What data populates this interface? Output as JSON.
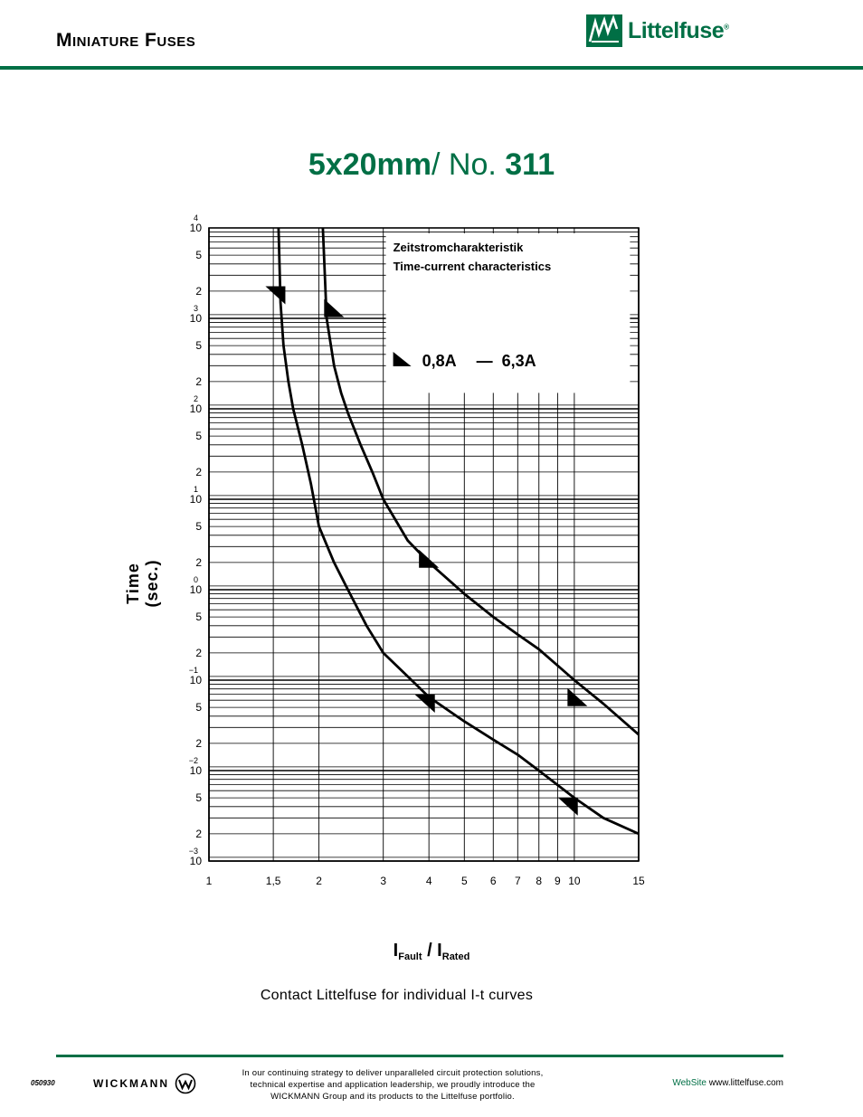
{
  "header": {
    "section_title": "Miniature Fuses",
    "brand_name": "Littelfuse",
    "brand_reg": "®"
  },
  "title": {
    "part1": "5x20mm",
    "part2": "/ No. ",
    "part3": "311"
  },
  "chart_data": {
    "type": "line",
    "title": "Zeitstromcharakteristik",
    "subtitle": "Time-current characteristics",
    "range_label_from": "0,8A",
    "range_label_dash": "—",
    "range_label_to": "6,3A",
    "ylabel": "Time (sec.)",
    "xlabel_main": "I",
    "xlabel_sub1": "Fault",
    "xlabel_sep": " / I",
    "xlabel_sub2": "Rated",
    "x_scale": "log",
    "y_scale": "log",
    "xlim": [
      1,
      15
    ],
    "ylim": [
      0.001,
      10000
    ],
    "x_ticks": [
      {
        "v": 1,
        "label": "1"
      },
      {
        "v": 1.5,
        "label": "1,5"
      },
      {
        "v": 2,
        "label": "2"
      },
      {
        "v": 3,
        "label": "3"
      },
      {
        "v": 4,
        "label": "4"
      },
      {
        "v": 5,
        "label": "5"
      },
      {
        "v": 6,
        "label": "6"
      },
      {
        "v": 7,
        "label": "7"
      },
      {
        "v": 8,
        "label": "8"
      },
      {
        "v": 9,
        "label": "9"
      },
      {
        "v": 10,
        "label": "10"
      },
      {
        "v": 15,
        "label": "15"
      }
    ],
    "y_decades": [
      {
        "v": 10000,
        "base": "10",
        "exp": "4"
      },
      {
        "v": 1000,
        "base": "10",
        "exp": "3"
      },
      {
        "v": 100,
        "base": "10",
        "exp": "2"
      },
      {
        "v": 10,
        "base": "10",
        "exp": "1"
      },
      {
        "v": 1,
        "base": "10",
        "exp": "0"
      },
      {
        "v": 0.1,
        "base": "10",
        "exp": "−1"
      },
      {
        "v": 0.01,
        "base": "10",
        "exp": "−2"
      },
      {
        "v": 0.001,
        "base": "10",
        "exp": "−3"
      }
    ],
    "y_minor_labels": [
      "5",
      "2"
    ],
    "series": [
      {
        "x": [
          1.55,
          1.57,
          1.6,
          1.65,
          1.7,
          1.8,
          1.9,
          2.0,
          2.2,
          2.4,
          2.7,
          3.0,
          3.5,
          4.0,
          5.0,
          6.0,
          7.0,
          8.0,
          10.0,
          12.0,
          15.0
        ],
        "y": [
          10000,
          1500,
          500,
          200,
          100,
          40,
          15,
          5,
          2,
          1,
          0.4,
          0.2,
          0.11,
          0.065,
          0.035,
          0.022,
          0.015,
          0.01,
          0.005,
          0.003,
          0.002
        ]
      },
      {
        "x": [
          2.05,
          2.1,
          2.2,
          2.3,
          2.4,
          2.6,
          2.8,
          3.0,
          3.5,
          4.0,
          5.0,
          6.0,
          7.0,
          8.0,
          10.0,
          12.0,
          15.0
        ],
        "y": [
          10000,
          1000,
          300,
          150,
          90,
          40,
          20,
          10,
          3.5,
          2,
          0.9,
          0.5,
          0.32,
          0.22,
          0.1,
          0.055,
          0.025
        ]
      }
    ]
  },
  "note": "Contact Littelfuse for individual I-t curves",
  "footer": {
    "code": "050930",
    "wickmann": "WICKMANN",
    "line1": "In our continuing strategy to deliver unparalleled circuit protection solutions,",
    "line2": "technical expertise and application leadership, we proudly introduce the",
    "line3": "WICKMANN Group and its products to the Littelfuse portfolio.",
    "website_label": "WebSite",
    "website_url": "www.littelfuse.com"
  },
  "colors": {
    "brand_green": "#006f45",
    "curve": "#000000"
  }
}
